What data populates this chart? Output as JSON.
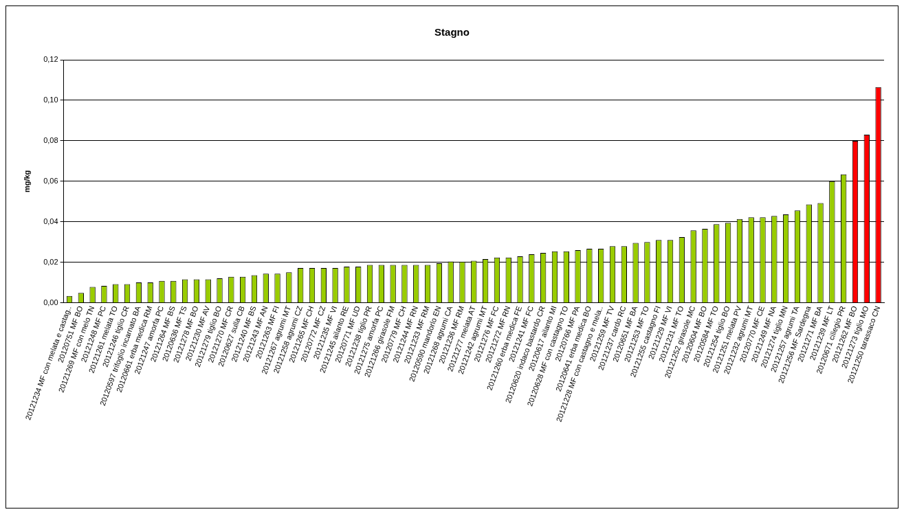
{
  "chart_data": {
    "type": "bar",
    "title": "Stagno",
    "ylabel": "mg/kg",
    "categories": [
      "20121234 MF con melata e castag..",
      "20120751 MF BO",
      "20121269 MF con melo TN",
      "20121248 MF PC",
      "20121261 melata TO",
      "20121246 tiglio CR",
      "20120597 trifoglio incarnato BA",
      "20120661 erba medica RM",
      "20121247 amorfa PC",
      "20121264 MF BS",
      "20120636 MF TS",
      "20121278 MF BO",
      "20121230 MF AV",
      "20121279 tiglio BO",
      "20121270 MF CR",
      "20120627 sulla CB",
      "20121240 MF BS",
      "20121243 MF AN",
      "20121263 MF FI",
      "20121267 agrumi MT",
      "20121258 agrumi CZ",
      "20121265 MF CH",
      "20120772 MF CZ",
      "20121235 MF VI",
      "20121245 ailanto RE",
      "20120771 MF UD",
      "20121238 tiglio PR",
      "20121275 amorfa PC",
      "20121266 girasole FM",
      "20120779 MF CH",
      "20121244 MF RN",
      "20121233 MF RM",
      "20120590 mandorlo EN",
      "20121268 agrumi CA",
      "20121236 MF RM",
      "20121277 melata AT",
      "20121242 agrumi MT",
      "20121276 MF FC",
      "20121272 MF RN",
      "20121260 erba medica FE",
      "20121241 MF FC",
      "20120620 indaco bastardo CR",
      "20120617 ailanto MI",
      "20120628 MF con castagno TO",
      "20120766 MF PA",
      "20120641 erba medica BO",
      "20121228 MF con castagno e mela..",
      "20121259 MF TV",
      "20121237 cardo RC",
      "20120651 MF BA",
      "20121253 MF TO",
      "20121255 castagno FI",
      "20121229 MF VI",
      "20121231 MF TO",
      "20121252 girasole MC",
      "20120604 MF BO",
      "20120584 MF TO",
      "20121254 tiglio BO",
      "20121251 melata PV",
      "20121232 agrumi MT",
      "20120770 MF CE",
      "20121249 MF NA",
      "20121274 tiglio MN",
      "20121257 agrumi TA",
      "20121256 MF Sardegna",
      "20121271 MF BA",
      "20121239 MF LT",
      "20120671 ciliegio PR",
      "20121262 MF BO",
      "20121273 tiglio MO",
      "20121250 tarassaco CN"
    ],
    "values": [
      0.0034,
      0.0049,
      0.0079,
      0.0084,
      0.0092,
      0.0092,
      0.0101,
      0.0101,
      0.0108,
      0.0108,
      0.0116,
      0.0116,
      0.0116,
      0.0121,
      0.0129,
      0.0129,
      0.0136,
      0.0144,
      0.0144,
      0.0151,
      0.0172,
      0.0172,
      0.0172,
      0.0172,
      0.0179,
      0.0179,
      0.0187,
      0.0187,
      0.0187,
      0.0187,
      0.0187,
      0.0187,
      0.0196,
      0.0204,
      0.0203,
      0.0208,
      0.0216,
      0.0224,
      0.0224,
      0.023,
      0.024,
      0.0247,
      0.0254,
      0.0254,
      0.026,
      0.0267,
      0.0267,
      0.028,
      0.028,
      0.0296,
      0.03,
      0.031,
      0.031,
      0.0325,
      0.0358,
      0.0365,
      0.0388,
      0.0395,
      0.0414,
      0.0422,
      0.0422,
      0.0429,
      0.0437,
      0.0456,
      0.0486,
      0.0493,
      0.06,
      0.0634,
      0.08,
      0.083,
      0.1065
    ],
    "colors": [
      "#99cc00",
      "#99cc00",
      "#99cc00",
      "#99cc00",
      "#99cc00",
      "#99cc00",
      "#99cc00",
      "#99cc00",
      "#99cc00",
      "#99cc00",
      "#99cc00",
      "#99cc00",
      "#99cc00",
      "#99cc00",
      "#99cc00",
      "#99cc00",
      "#99cc00",
      "#99cc00",
      "#99cc00",
      "#99cc00",
      "#99cc00",
      "#99cc00",
      "#99cc00",
      "#99cc00",
      "#99cc00",
      "#99cc00",
      "#99cc00",
      "#99cc00",
      "#99cc00",
      "#99cc00",
      "#99cc00",
      "#99cc00",
      "#99cc00",
      "#99cc00",
      "#99cc00",
      "#99cc00",
      "#99cc00",
      "#99cc00",
      "#99cc00",
      "#99cc00",
      "#99cc00",
      "#99cc00",
      "#99cc00",
      "#99cc00",
      "#99cc00",
      "#99cc00",
      "#99cc00",
      "#99cc00",
      "#99cc00",
      "#99cc00",
      "#99cc00",
      "#99cc00",
      "#99cc00",
      "#99cc00",
      "#99cc00",
      "#99cc00",
      "#99cc00",
      "#99cc00",
      "#99cc00",
      "#99cc00",
      "#99cc00",
      "#99cc00",
      "#99cc00",
      "#99cc00",
      "#99cc00",
      "#99cc00",
      "#99cc00",
      "#99cc00",
      "#ff0000",
      "#ff0000",
      "#ff0000"
    ],
    "ylim": [
      0,
      0.12
    ],
    "yticks": [
      {
        "value": 0,
        "label": "0,00"
      },
      {
        "value": 0.02,
        "label": "0,02"
      },
      {
        "value": 0.04,
        "label": "0,04"
      },
      {
        "value": 0.06,
        "label": "0,06"
      },
      {
        "value": 0.08,
        "label": "0,08"
      },
      {
        "value": 0.1,
        "label": "0,10"
      },
      {
        "value": 0.12,
        "label": "0,12"
      }
    ],
    "grid": "y",
    "legend": false
  }
}
